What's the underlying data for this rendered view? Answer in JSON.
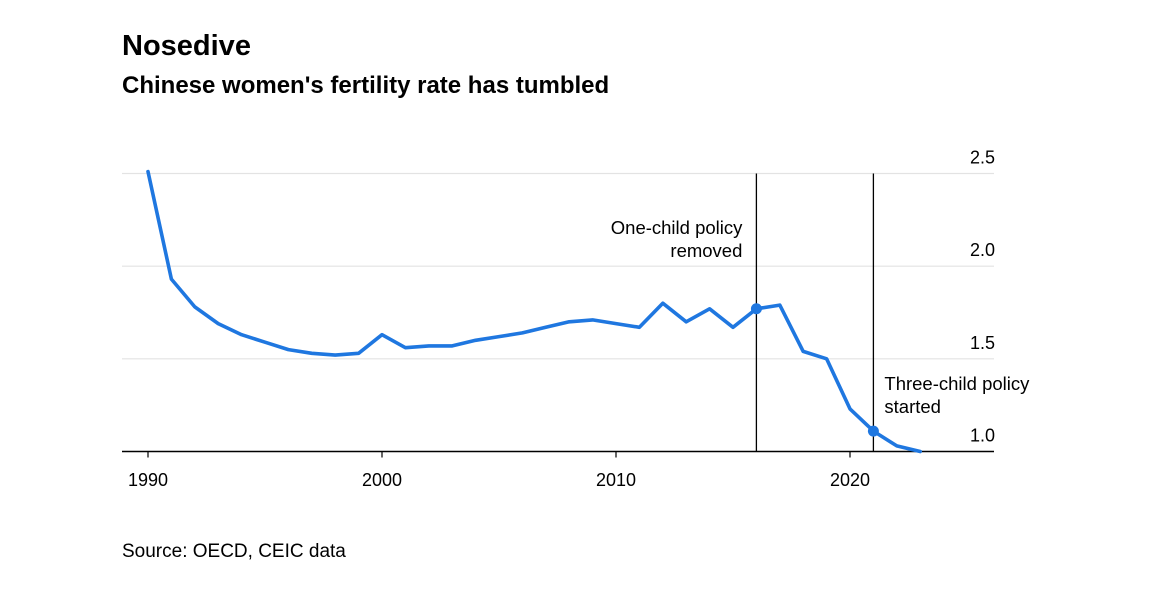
{
  "title": "Nosedive",
  "subtitle": "Chinese women's fertility rate has tumbled",
  "source": "Source: OECD, CEIC data",
  "accent_color": "#1f77e0",
  "chart_data": {
    "type": "line",
    "title": "Nosedive",
    "subtitle": "Chinese women's fertility rate has tumbled",
    "xlabel": "",
    "ylabel": "",
    "xlim": [
      1989,
      2025
    ],
    "ylim": [
      1.0,
      2.5
    ],
    "x_ticks": [
      1990,
      2000,
      2010,
      2020
    ],
    "y_ticks": [
      2.5,
      2.0,
      1.5,
      1.0
    ],
    "y_tick_labels": [
      "2.5",
      "2.0",
      "1.5",
      "1.0"
    ],
    "grid": true,
    "series": [
      {
        "color": "#1f77e0",
        "x": [
          1990,
          1991,
          1992,
          1993,
          1994,
          1995,
          1996,
          1997,
          1998,
          1999,
          2000,
          2001,
          2002,
          2003,
          2004,
          2005,
          2006,
          2007,
          2008,
          2009,
          2010,
          2011,
          2012,
          2013,
          2014,
          2015,
          2016,
          2017,
          2018,
          2019,
          2020,
          2021,
          2022,
          2023
        ],
        "values": [
          2.51,
          1.93,
          1.78,
          1.69,
          1.63,
          1.59,
          1.55,
          1.53,
          1.52,
          1.53,
          1.63,
          1.56,
          1.57,
          1.57,
          1.6,
          1.62,
          1.64,
          1.67,
          1.7,
          1.71,
          1.69,
          1.67,
          1.8,
          1.7,
          1.77,
          1.67,
          1.77,
          1.79,
          1.54,
          1.5,
          1.23,
          1.11,
          1.03,
          1.0
        ]
      }
    ],
    "annotations": [
      {
        "x": 2016,
        "y": 1.77,
        "label_lines": [
          "One-child policy",
          "removed"
        ],
        "align": "left-of-line"
      },
      {
        "x": 2021,
        "y": 1.11,
        "label_lines": [
          "Three-child policy",
          "started"
        ],
        "align": "right-of-line"
      }
    ]
  }
}
